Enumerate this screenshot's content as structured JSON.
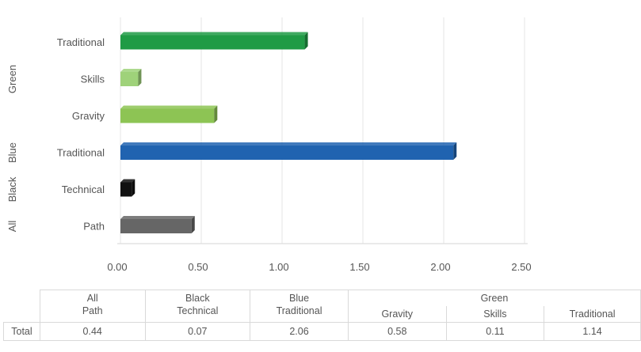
{
  "chart_data": {
    "type": "bar",
    "orientation": "horizontal",
    "title": "",
    "xlabel": "",
    "ylabel": "",
    "xlim": [
      0,
      2.5
    ],
    "xticks": [
      "0.00",
      "0.50",
      "1.00",
      "1.50",
      "2.00",
      "2.50"
    ],
    "grid": true,
    "groups": [
      {
        "label": "All",
        "categories": [
          {
            "label": "Path",
            "value": 0.44,
            "color": "#666666"
          }
        ]
      },
      {
        "label": "Black",
        "categories": [
          {
            "label": "Technical",
            "value": 0.07,
            "color": "#111111"
          }
        ]
      },
      {
        "label": "Blue",
        "categories": [
          {
            "label": "Traditional",
            "value": 2.06,
            "color": "#2063b0"
          }
        ]
      },
      {
        "label": "Green",
        "categories": [
          {
            "label": "Gravity",
            "value": 0.58,
            "color": "#8dc454"
          },
          {
            "label": "Skills",
            "value": 0.11,
            "color": "#9fd27a"
          },
          {
            "label": "Traditional",
            "value": 1.14,
            "color": "#1f9b45"
          }
        ]
      }
    ],
    "table": {
      "row_label": "Total",
      "values": [
        "0.44",
        "0.07",
        "2.06",
        "0.58",
        "0.11",
        "1.14"
      ]
    }
  }
}
